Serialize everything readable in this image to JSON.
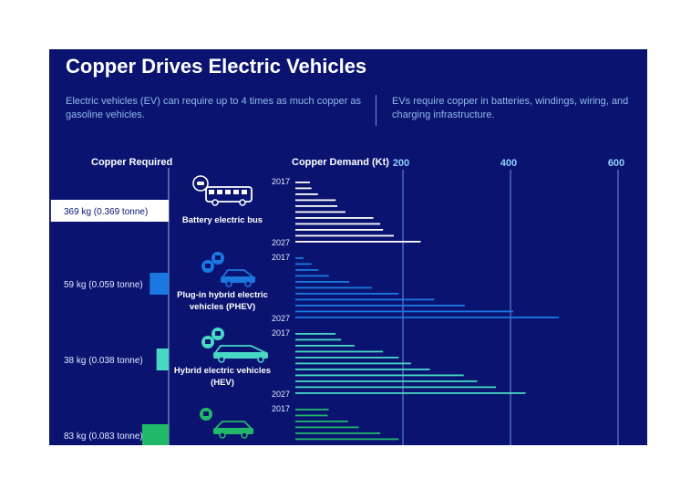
{
  "title": "Copper Drives Electric Vehicles",
  "intro": {
    "left": "Electric vehicles (EV) can require up to 4 times as much copper as gasoline vehicles.",
    "right": "EVs require copper in batteries, windings, wiring, and charging infrastructure."
  },
  "columns": {
    "required": "Copper Required",
    "demand": "Copper Demand (Kt)"
  },
  "colors": {
    "background": "#0a1470",
    "bus": "#ffffff",
    "phev": "#1a78e0",
    "hev": "#48d8c4",
    "bev": "#22b86a"
  },
  "chart_data": {
    "type": "bar",
    "x_axis": {
      "label": "Copper Demand (Kt)",
      "ticks": [
        200,
        400,
        600
      ],
      "range": [
        0,
        600
      ]
    },
    "vehicles": [
      {
        "name": "Battery electric bus",
        "required_label": "369 kg (0.369 tonne)",
        "required_kg": 369,
        "color_key": "bus",
        "icon": "bus-icon",
        "start_label": "2017",
        "end_label": "2027",
        "years": [
          2017,
          2018,
          2019,
          2020,
          2021,
          2022,
          2023,
          2024,
          2025,
          2026,
          2027
        ],
        "demand_kt": [
          27,
          30,
          42,
          75,
          78,
          93,
          145,
          158,
          163,
          183,
          233
        ]
      },
      {
        "name": "Plug-in hybrid electric vehicles (PHEV)",
        "required_label": "59 kg (0.059 tonne)",
        "required_kg": 59,
        "color_key": "phev",
        "icon": "phev-icon",
        "start_label": "2017",
        "end_label": "2027",
        "years": [
          2017,
          2018,
          2019,
          2020,
          2021,
          2022,
          2023,
          2024,
          2025,
          2026,
          2027
        ],
        "demand_kt": [
          15,
          30,
          43,
          62,
          100,
          142,
          192,
          258,
          315,
          405,
          490
        ]
      },
      {
        "name": "Hybrid electric vehicles (HEV)",
        "required_label": "38 kg (0.038 tonne)",
        "required_kg": 38,
        "color_key": "hev",
        "icon": "hev-icon",
        "start_label": "2017",
        "end_label": "2027",
        "years": [
          2017,
          2018,
          2019,
          2020,
          2021,
          2022,
          2023,
          2024,
          2025,
          2026,
          2027
        ],
        "demand_kt": [
          75,
          85,
          110,
          163,
          192,
          215,
          250,
          313,
          338,
          373,
          428
        ]
      },
      {
        "name": "",
        "required_label": "83 kg (0.083 tonne)",
        "required_kg": 83,
        "color_key": "bev",
        "icon": "bev-icon",
        "start_label": "2017",
        "end_label": "",
        "years": [
          2017,
          2018,
          2019,
          2020,
          2021,
          2022
        ],
        "demand_kt": [
          62,
          60,
          98,
          118,
          158,
          192
        ]
      }
    ]
  }
}
